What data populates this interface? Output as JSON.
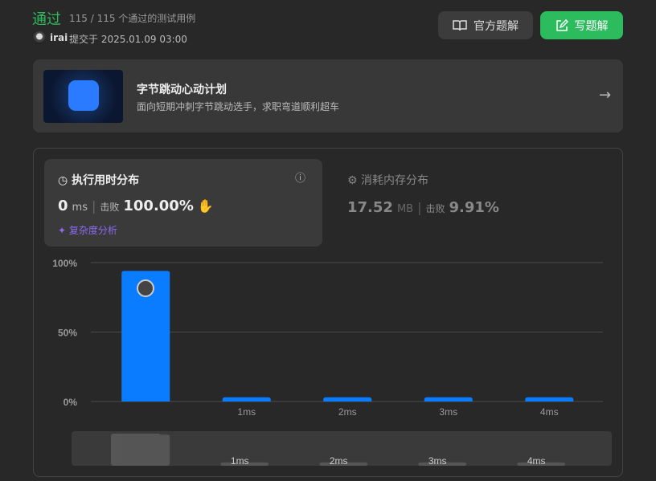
{
  "header": {
    "status": "通过",
    "testcases": "115 / 115 个通过的测试用例",
    "user": "irai",
    "submitted": "提交于 2025.01.09 03:00",
    "official_button": "官方题解",
    "write_button": "写题解"
  },
  "banner": {
    "title": "字节跳动心动计划",
    "subtitle": "面向短期冲刺字节跳动选手，求职弯道顺利超车"
  },
  "runtime": {
    "title": "执行用时分布",
    "value": "0",
    "unit": "ms",
    "beats_label": "击败",
    "beats": "100.00%",
    "analysis": "复杂度分析"
  },
  "memory": {
    "title": "消耗内存分布",
    "value": "17.52",
    "unit": "MB",
    "beats_label": "击败",
    "beats": "9.91%"
  },
  "chart_data": {
    "type": "bar",
    "categories": [
      null,
      "1ms",
      "2ms",
      "3ms",
      "4ms"
    ],
    "values": [
      94,
      3,
      3,
      3,
      3
    ],
    "color": "#0a7cff",
    "ylim": [
      0,
      100
    ],
    "yticks": [
      {
        "value": 0,
        "label": "0%"
      },
      {
        "value": 50,
        "label": "50%"
      },
      {
        "value": 100,
        "label": "100%"
      }
    ],
    "grid": true
  }
}
